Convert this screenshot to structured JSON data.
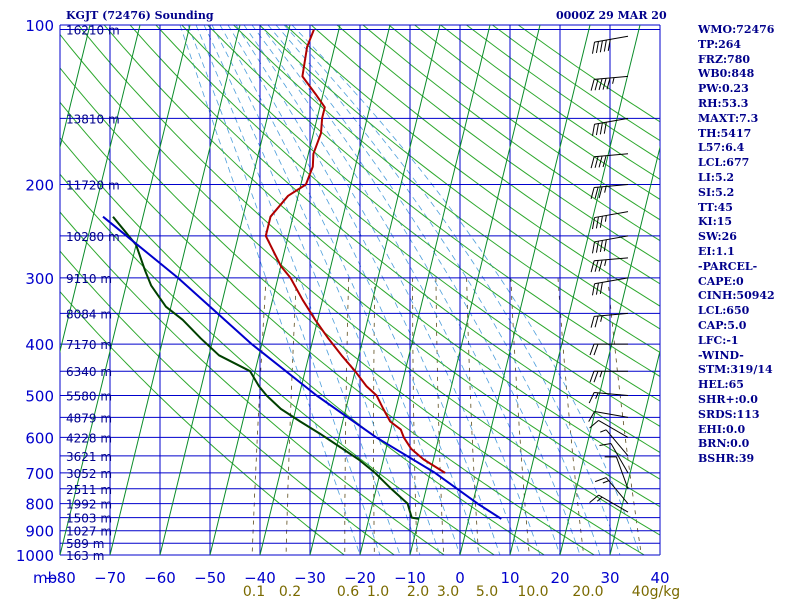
{
  "header": {
    "station": "KGJT (72476) Sounding",
    "time": "0000Z 29 MAR 20"
  },
  "indices": [
    "WMO:72476",
    "TP:264",
    "FRZ:780",
    "WB0:848",
    "PW:0.23",
    "RH:53.3",
    "MAXT:7.3",
    "TH:5417",
    "L57:6.4",
    "LCL:677",
    "LI:5.2",
    "SI:5.2",
    "TT:45",
    "KI:15",
    "SW:26",
    "EI:1.1",
    "-PARCEL-",
    "CAPE:0",
    "CINH:50942",
    "LCL:650",
    "CAP:5.0",
    "LFC:-1",
    "-WIND-",
    "STM:319/14",
    "HEL:65",
    "SHR+:0.0",
    "SRDS:113",
    "EHI:0.0",
    "BRN:0.0",
    "BSHR:39"
  ],
  "chart_data": {
    "type": "line",
    "title": "KGJT (72476) Sounding",
    "x_axis": {
      "label": "",
      "unit_label": "mb",
      "range": [
        -80,
        40
      ],
      "ticks": [
        -80,
        -70,
        -60,
        -50,
        -40,
        -30,
        -20,
        -10,
        0,
        10,
        20,
        30,
        40
      ]
    },
    "y_axis": {
      "label": "",
      "scale": "log",
      "range": [
        1000,
        100
      ],
      "ticks": [
        100,
        200,
        300,
        400,
        500,
        600,
        700,
        800,
        900,
        1000
      ]
    },
    "mixing_ratio_labels": [
      "0.1",
      "0.2",
      "0.6",
      "1.0",
      "2.0",
      "3.0",
      "5.0",
      "10.0",
      "20.0",
      "40g/kg"
    ],
    "heights": [
      {
        "p": 102,
        "label": "16210 m"
      },
      {
        "p": 150,
        "label": "13810 m"
      },
      {
        "p": 200,
        "label": "11720 m"
      },
      {
        "p": 250,
        "label": "10280 m"
      },
      {
        "p": 300,
        "label": "9110 m"
      },
      {
        "p": 350,
        "label": "8084 m"
      },
      {
        "p": 400,
        "label": "7170 m"
      },
      {
        "p": 450,
        "label": "6340 m"
      },
      {
        "p": 500,
        "label": "5580 m"
      },
      {
        "p": 550,
        "label": "4879 m"
      },
      {
        "p": 600,
        "label": "4228 m"
      },
      {
        "p": 650,
        "label": "3621 m"
      },
      {
        "p": 700,
        "label": "3052 m"
      },
      {
        "p": 750,
        "label": "2511 m"
      },
      {
        "p": 800,
        "label": "1992 m"
      },
      {
        "p": 850,
        "label": "1503 m"
      },
      {
        "p": 900,
        "label": "1027 m"
      },
      {
        "p": 950,
        "label": "589 m"
      },
      {
        "p": 1000,
        "label": "163 m"
      }
    ],
    "series": [
      {
        "color": "#b00000",
        "points": [
          [
            102,
            -55.0
          ],
          [
            110,
            -55.5
          ],
          [
            125,
            -55.0
          ],
          [
            135,
            -51.5
          ],
          [
            143,
            -49.0
          ],
          [
            150,
            -49.0
          ],
          [
            160,
            -48.5
          ],
          [
            175,
            -49.0
          ],
          [
            185,
            -48.5
          ],
          [
            200,
            -49.0
          ],
          [
            210,
            -52.0
          ],
          [
            230,
            -54.5
          ],
          [
            250,
            -54.5
          ],
          [
            265,
            -52.5
          ],
          [
            285,
            -50.0
          ],
          [
            300,
            -47.5
          ],
          [
            330,
            -44.0
          ],
          [
            360,
            -40.5
          ],
          [
            390,
            -37.0
          ],
          [
            420,
            -33.5
          ],
          [
            450,
            -30.0
          ],
          [
            480,
            -27.0
          ],
          [
            500,
            -24.5
          ],
          [
            530,
            -22.5
          ],
          [
            560,
            -20.5
          ],
          [
            580,
            -18.0
          ],
          [
            600,
            -17.0
          ],
          [
            630,
            -15.0
          ],
          [
            660,
            -12.0
          ],
          [
            700,
            -7.0
          ]
        ]
      },
      {
        "color": "#004000",
        "points": [
          [
            230,
            -86.0
          ],
          [
            260,
            -80.0
          ],
          [
            290,
            -77.0
          ],
          [
            310,
            -75.0
          ],
          [
            340,
            -71.0
          ],
          [
            360,
            -67.0
          ],
          [
            390,
            -62.5
          ],
          [
            420,
            -58.0
          ],
          [
            450,
            -51.0
          ],
          [
            480,
            -48.5
          ],
          [
            500,
            -46.5
          ],
          [
            530,
            -43.0
          ],
          [
            560,
            -38.5
          ],
          [
            590,
            -34.0
          ],
          [
            620,
            -30.0
          ],
          [
            660,
            -25.0
          ],
          [
            700,
            -21.0
          ],
          [
            750,
            -17.0
          ],
          [
            800,
            -13.0
          ],
          [
            850,
            -11.5
          ],
          [
            855,
            -10.0
          ]
        ]
      },
      {
        "color": "#0000cc",
        "points": [
          [
            230,
            -88.0
          ],
          [
            300,
            -70.0
          ],
          [
            400,
            -52.0
          ],
          [
            500,
            -36.5
          ],
          [
            600,
            -22.5
          ],
          [
            700,
            -9.0
          ],
          [
            800,
            1.0
          ],
          [
            855,
            6.5
          ]
        ]
      }
    ],
    "wind_barbs": [
      {
        "p": 105,
        "dir": 260,
        "kt": 50
      },
      {
        "p": 125,
        "dir": 265,
        "kt": 55
      },
      {
        "p": 150,
        "dir": 260,
        "kt": 40
      },
      {
        "p": 175,
        "dir": 265,
        "kt": 40
      },
      {
        "p": 200,
        "dir": 265,
        "kt": 35
      },
      {
        "p": 225,
        "dir": 260,
        "kt": 35
      },
      {
        "p": 250,
        "dir": 260,
        "kt": 40
      },
      {
        "p": 275,
        "dir": 265,
        "kt": 35
      },
      {
        "p": 300,
        "dir": 260,
        "kt": 30
      },
      {
        "p": 350,
        "dir": 265,
        "kt": 25
      },
      {
        "p": 400,
        "dir": 270,
        "kt": 20
      },
      {
        "p": 450,
        "dir": 270,
        "kt": 25
      },
      {
        "p": 500,
        "dir": 275,
        "kt": 15
      },
      {
        "p": 550,
        "dir": 280,
        "kt": 10
      },
      {
        "p": 600,
        "dir": 300,
        "kt": 10
      },
      {
        "p": 650,
        "dir": 320,
        "kt": 5
      },
      {
        "p": 700,
        "dir": 330,
        "kt": 10
      },
      {
        "p": 750,
        "dir": 340,
        "kt": 10
      },
      {
        "p": 800,
        "dir": 320,
        "kt": 15
      },
      {
        "p": 830,
        "dir": 300,
        "kt": 15
      }
    ]
  }
}
